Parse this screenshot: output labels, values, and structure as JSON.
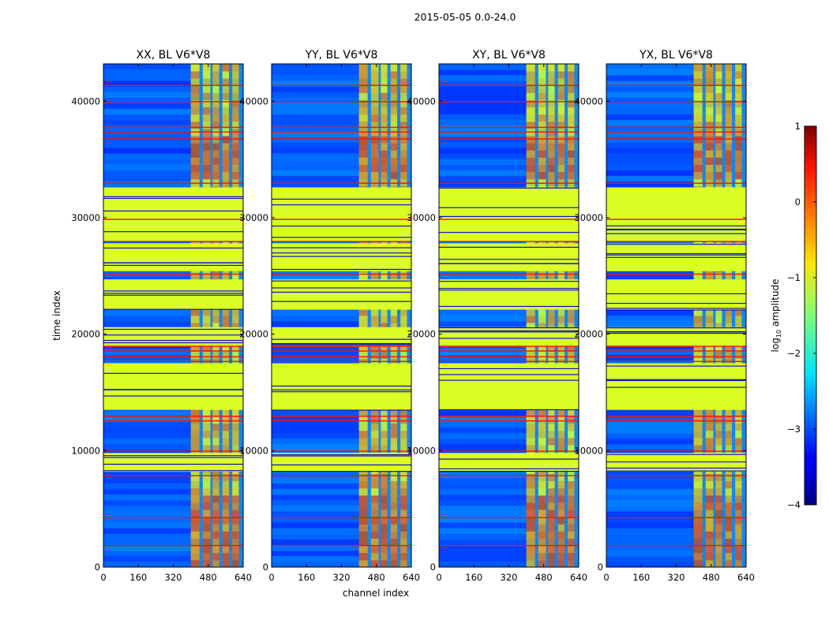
{
  "figure": {
    "suptitle": "2015-05-05 0.0-24.0",
    "xlabel": "channel index",
    "ylabel": "time index"
  },
  "colorbar": {
    "label_prefix": "log",
    "label_subscript": "10",
    "label_suffix": " amplitude",
    "range": [
      -4,
      1
    ],
    "ticks": [
      1,
      0,
      -1,
      -2,
      -3,
      -4
    ],
    "tick_labels": [
      "1",
      "0",
      "−1",
      "−2",
      "−3",
      "−4"
    ],
    "colormap": "jet"
  },
  "chart_data": [
    {
      "type": "heatmap",
      "title": "XX, BL V6*V8",
      "xlabel": "channel index",
      "ylabel": "time index",
      "xlim": [
        0,
        640
      ],
      "ylim": [
        0,
        43200
      ],
      "xticks": [
        "0",
        "160",
        "320",
        "480",
        "640"
      ],
      "yticks": [
        "0",
        "10000",
        "20000",
        "30000",
        "40000"
      ],
      "signal_start_channel": 400,
      "notes": "Low noise (~ -3 log10) below channel 400, strong striped signal (~0 log10) above; flagged constant bands (~ -1 log10)"
    },
    {
      "type": "heatmap",
      "title": "YY, BL V6*V8",
      "xlabel": "channel index",
      "ylabel": "time index",
      "xlim": [
        0,
        640
      ],
      "ylim": [
        0,
        43200
      ],
      "xticks": [
        "0",
        "160",
        "320",
        "480",
        "640"
      ],
      "yticks": [
        "0",
        "10000",
        "20000",
        "30000",
        "40000"
      ],
      "signal_start_channel": 400
    },
    {
      "type": "heatmap",
      "title": "XY, BL V6*V8",
      "xlabel": "channel index",
      "ylabel": "time index",
      "xlim": [
        0,
        640
      ],
      "ylim": [
        0,
        43200
      ],
      "xticks": [
        "0",
        "160",
        "320",
        "480",
        "640"
      ],
      "yticks": [
        "0",
        "10000",
        "20000",
        "30000",
        "40000"
      ],
      "signal_start_channel": 400
    },
    {
      "type": "heatmap",
      "title": "YX, BL V6*V8",
      "xlabel": "channel index",
      "ylabel": "time index",
      "xlim": [
        0,
        640
      ],
      "ylim": [
        0,
        43200
      ],
      "xticks": [
        "0",
        "160",
        "320",
        "480",
        "640"
      ],
      "yticks": [
        "0",
        "10000",
        "20000",
        "30000",
        "40000"
      ],
      "signal_start_channel": 400
    }
  ],
  "flag_bands": [
    [
      8200,
      9800
    ],
    [
      13500,
      17500
    ],
    [
      19000,
      20600
    ],
    [
      22100,
      24700
    ],
    [
      25400,
      27800
    ],
    [
      28000,
      32600
    ]
  ],
  "red_lines": [
    1900,
    4300,
    7900,
    10000,
    12600,
    13000,
    17700,
    18100,
    18600,
    19000,
    25200,
    28000,
    29900,
    33000,
    36800,
    37400,
    37800,
    40000,
    41400
  ],
  "signal_columns": [
    {
      "from": 400,
      "to": 440
    },
    {
      "from": 455,
      "to": 490
    },
    {
      "from": 500,
      "to": 530
    },
    {
      "from": 545,
      "to": 575
    },
    {
      "from": 590,
      "to": 620
    }
  ]
}
